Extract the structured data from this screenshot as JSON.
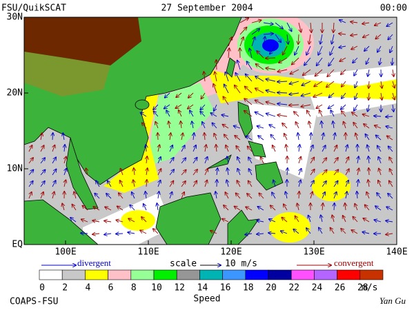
{
  "header": {
    "source": "FSU/QuikSCAT",
    "date": "27 September 2004",
    "time": "00:00"
  },
  "map": {
    "lat_labels": [
      "30N",
      "20N",
      "10N",
      "EQ"
    ],
    "lon_labels": [
      "100E",
      "110E",
      "120E",
      "130E",
      "140E"
    ]
  },
  "legend": {
    "divergent": "divergent",
    "scale": "scale",
    "scale_value": "10 m/s",
    "convergent": "convergent"
  },
  "colorbar": {
    "ticks": [
      0,
      2,
      4,
      6,
      8,
      10,
      12,
      14,
      16,
      18,
      20,
      22,
      24,
      26,
      28
    ],
    "unit": "m/s",
    "title": "Speed",
    "colors": [
      "#ffffff",
      "#c8c8c8",
      "#ffff00",
      "#ffc0c8",
      "#96ff96",
      "#00f000",
      "#969696",
      "#00b4b4",
      "#3c96ff",
      "#0000ff",
      "#0000a0",
      "#ff50ff",
      "#b464ff",
      "#ff0000",
      "#c83200",
      "#000000"
    ]
  },
  "footer": {
    "left": "COAPS-FSU",
    "right": "Yan Gu"
  }
}
